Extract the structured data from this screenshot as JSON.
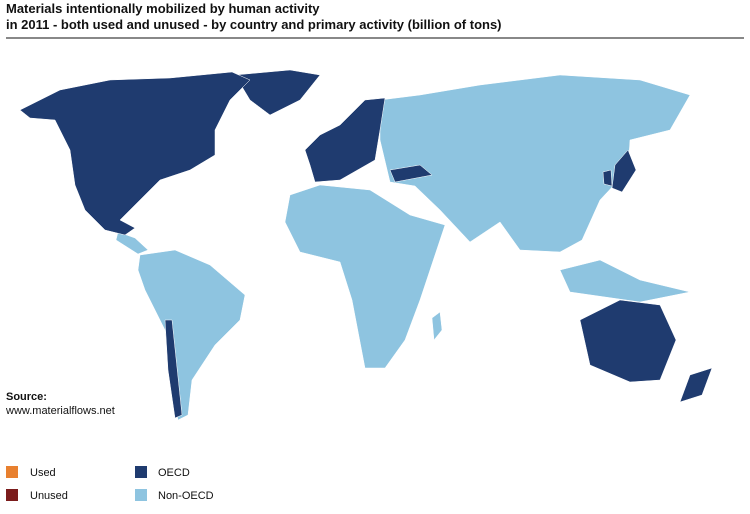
{
  "title": {
    "lines": [
      "Materials intentionally mobilized by human activity",
      "in 2011 - both used and unused - by country and primary activity (billion of tons)"
    ]
  },
  "source": {
    "label": "Source:",
    "url": "www.materialflows.net"
  },
  "legend": [
    {
      "label": "Used",
      "color": "#e8802f"
    },
    {
      "label": "Unused",
      "color": "#7b1c1c"
    },
    {
      "label": "OECD",
      "color": "#1f3b6f"
    },
    {
      "label": "Non-OECD",
      "color": "#8ec4e0"
    }
  ]
}
